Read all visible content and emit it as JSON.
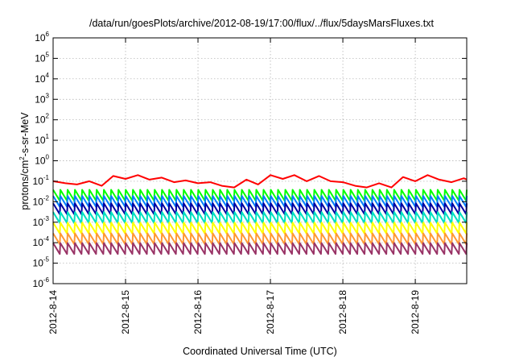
{
  "chart_data": {
    "type": "line",
    "title": "/data/run/goesPlots/archive/2012-08-19/17:00/flux/../flux/5daysMarsFluxes.txt",
    "xlabel": "Coordinated Universal Time (UTC)",
    "ylabel": {
      "prefix": "protons/cm",
      "superscript": "2",
      "suffix": "-s-sr-MeV"
    },
    "yscale": "log",
    "ylim_exponent": [
      -6,
      6
    ],
    "y_ticks": [
      {
        "base": "10",
        "exponent": "6"
      },
      {
        "base": "10",
        "exponent": "5"
      },
      {
        "base": "10",
        "exponent": "4"
      },
      {
        "base": "10",
        "exponent": "3"
      },
      {
        "base": "10",
        "exponent": "2"
      },
      {
        "base": "10",
        "exponent": "1"
      },
      {
        "base": "10",
        "exponent": "0"
      },
      {
        "base": "10",
        "exponent": "-1"
      },
      {
        "base": "10",
        "exponent": "-2"
      },
      {
        "base": "10",
        "exponent": "-3"
      },
      {
        "base": "10",
        "exponent": "-4"
      },
      {
        "base": "10",
        "exponent": "-5"
      },
      {
        "base": "10",
        "exponent": "-6"
      }
    ],
    "x_range": [
      "2012-08-14",
      "2012-08-19 17:00"
    ],
    "x_ticks": [
      "2012-8-14",
      "2012-8-15",
      "2012-8-16",
      "2012-8-17",
      "2012-8-18",
      "2012-8-19"
    ],
    "grid": true,
    "legend": "none",
    "series": [
      {
        "color": "#ff0000",
        "x_days": [
          0.0,
          0.17,
          0.33,
          0.5,
          0.67,
          0.83,
          1.0,
          1.17,
          1.33,
          1.5,
          1.67,
          1.83,
          2.0,
          2.17,
          2.33,
          2.5,
          2.67,
          2.83,
          3.0,
          3.17,
          3.33,
          3.5,
          3.67,
          3.83,
          4.0,
          4.17,
          4.33,
          4.5,
          4.67,
          4.83,
          5.0,
          5.17,
          5.33,
          5.5,
          5.67,
          5.71
        ],
        "y": [
          0.1,
          0.08,
          0.07,
          0.1,
          0.06,
          0.18,
          0.13,
          0.2,
          0.12,
          0.15,
          0.09,
          0.11,
          0.08,
          0.09,
          0.06,
          0.05,
          0.12,
          0.07,
          0.2,
          0.13,
          0.2,
          0.1,
          0.18,
          0.1,
          0.09,
          0.06,
          0.05,
          0.08,
          0.05,
          0.16,
          0.1,
          0.2,
          0.12,
          0.09,
          0.14,
          0.12
        ]
      },
      {
        "color": "#00ff00",
        "x_days": [
          0.0,
          5.71
        ],
        "y": [
          0.016,
          0.016
        ]
      },
      {
        "color": "#0080ff",
        "x_days": [
          0.0,
          5.71
        ],
        "y": [
          0.008,
          0.008
        ]
      },
      {
        "color": "#0000a0",
        "x_days": [
          0.0,
          5.71
        ],
        "y": [
          0.0035,
          0.0035
        ]
      },
      {
        "color": "#00e0c0",
        "x_days": [
          0.0,
          5.71
        ],
        "y": [
          0.0013,
          0.0013
        ]
      },
      {
        "color": "#ffff00",
        "x_days": [
          0.0,
          5.71
        ],
        "y": [
          0.0004,
          0.0004
        ]
      },
      {
        "color": "#ff9933",
        "x_days": [
          0.0,
          5.71
        ],
        "y": [
          0.00012,
          0.00012
        ]
      },
      {
        "color": "#993366",
        "x_days": [
          0.0,
          5.71
        ],
        "y": [
          4e-05,
          4e-05
        ]
      }
    ]
  }
}
